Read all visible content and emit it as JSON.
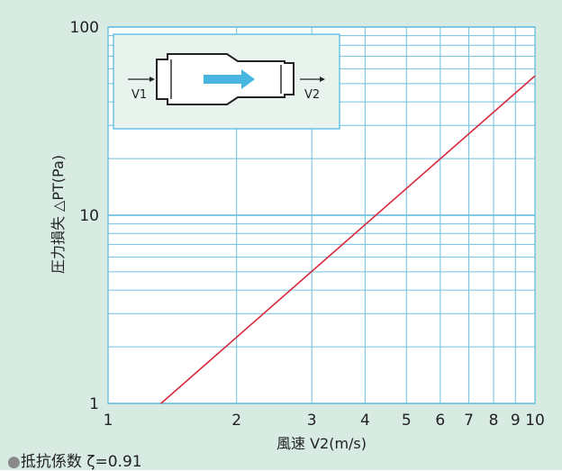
{
  "chart_data": {
    "type": "line",
    "x_scale": "log",
    "y_scale": "log",
    "xlim": [
      1,
      10
    ],
    "ylim": [
      1,
      100
    ],
    "x_ticks": [
      1,
      2,
      3,
      4,
      5,
      6,
      7,
      8,
      9,
      10
    ],
    "x_tick_labels": [
      "1",
      "2",
      "3",
      "4",
      "5",
      "6",
      "7",
      "8",
      "9",
      "10"
    ],
    "y_ticks": [
      1,
      10,
      100
    ],
    "y_tick_labels": [
      "1",
      "10",
      "100"
    ],
    "xlabel": "風速  V2(m/s)",
    "ylabel": "圧力損失  △PT(Pa)",
    "grid": true,
    "series": [
      {
        "x": [
          1.33,
          10.0
        ],
        "y": [
          1.0,
          55.0
        ]
      }
    ],
    "inset": {
      "v1_label": "V1",
      "v2_label": "V2"
    },
    "colors": {
      "line": "#d8283c",
      "grid": "#6fc0df",
      "background": "#d7ebe2",
      "plot": "#ffffff"
    }
  },
  "footnote": {
    "bullet": "●",
    "text": "抵抗係数 ζ=0.91"
  }
}
